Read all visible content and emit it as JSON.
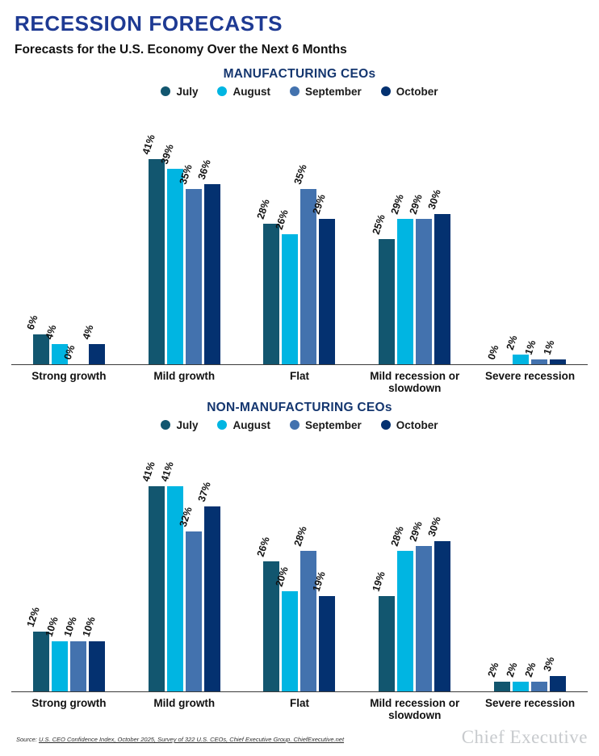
{
  "header": {
    "title": "RECESSION FORECASTS",
    "subtitle": "Forecasts for the U.S. Economy Over the Next 6 Months"
  },
  "colors": {
    "title_blue": "#1E3A93",
    "chart_title_navy": "#14366F",
    "july": "#12566F",
    "august": "#00B5E2",
    "september": "#4372AE",
    "october": "#043170",
    "axis": "#3A3A3A",
    "brand_gray": "#C7CACD"
  },
  "chart_data": [
    {
      "type": "bar",
      "title": "MANUFACTURING CEOs",
      "categories": [
        "Strong growth",
        "Mild growth",
        "Flat",
        "Mild recession or slowdown",
        "Severe recession"
      ],
      "series": [
        {
          "name": "July",
          "color": "#12566F",
          "values": [
            6,
            41,
            28,
            25,
            0
          ]
        },
        {
          "name": "August",
          "color": "#00B5E2",
          "values": [
            4,
            39,
            26,
            29,
            2
          ]
        },
        {
          "name": "September",
          "color": "#4372AE",
          "values": [
            0,
            35,
            35,
            29,
            1
          ]
        },
        {
          "name": "October",
          "color": "#043170",
          "values": [
            4,
            36,
            29,
            30,
            1
          ]
        }
      ],
      "value_suffix": "%",
      "ylim": [
        0,
        45
      ],
      "grid": false,
      "legend_position": "top",
      "value_labels": "rotated"
    },
    {
      "type": "bar",
      "title": "NON-MANUFACTURING CEOs",
      "categories": [
        "Strong growth",
        "Mild growth",
        "Flat",
        "Mild recession or slowdown",
        "Severe recession"
      ],
      "series": [
        {
          "name": "July",
          "color": "#12566F",
          "values": [
            12,
            41,
            26,
            19,
            2
          ]
        },
        {
          "name": "August",
          "color": "#00B5E2",
          "values": [
            10,
            41,
            20,
            28,
            2
          ]
        },
        {
          "name": "September",
          "color": "#4372AE",
          "values": [
            10,
            32,
            28,
            29,
            2
          ]
        },
        {
          "name": "October",
          "color": "#043170",
          "values": [
            10,
            37,
            19,
            30,
            3
          ]
        }
      ],
      "value_suffix": "%",
      "ylim": [
        0,
        45
      ],
      "grid": false,
      "legend_position": "top",
      "value_labels": "rotated"
    }
  ],
  "footer": {
    "source_prefix": "Source: ",
    "source_citation": "U.S. CEO Confidence Index, October 2025, Survey of 322 U.S. CEOs, Chief Executive Group. ChiefExecutive.net",
    "brand": "Chief Executive"
  }
}
